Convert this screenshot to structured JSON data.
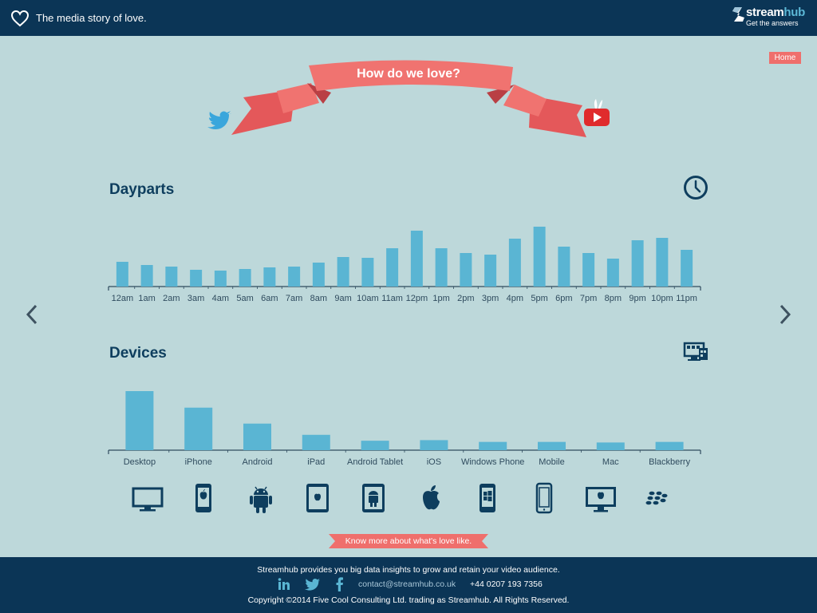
{
  "header": {
    "tagline": "The media story of love.",
    "brand_name_a": "stream",
    "brand_name_b": "hub",
    "brand_sub": "Get the answers"
  },
  "nav": {
    "home_label": "Home"
  },
  "hero": {
    "title": "How do we love?"
  },
  "colors": {
    "bar": "#5ab5d3",
    "navy": "#0b3556",
    "coral": "#ef6f6c",
    "bg": "#bdd8da"
  },
  "sections": {
    "dayparts_title": "Dayparts",
    "devices_title": "Devices"
  },
  "chart_data": [
    {
      "type": "bar",
      "title": "Dayparts",
      "categories": [
        "12am",
        "1am",
        "2am",
        "3am",
        "4am",
        "5am",
        "6am",
        "7am",
        "8am",
        "9am",
        "10am",
        "11am",
        "12pm",
        "1pm",
        "2pm",
        "3pm",
        "4pm",
        "5pm",
        "6pm",
        "7pm",
        "8pm",
        "9pm",
        "10pm",
        "11pm"
      ],
      "values": [
        31,
        27,
        25,
        21,
        20,
        22,
        24,
        25,
        30,
        37,
        36,
        48,
        70,
        48,
        42,
        40,
        60,
        75,
        50,
        42,
        35,
        58,
        61,
        46
      ],
      "ylim": [
        0,
        100
      ]
    },
    {
      "type": "bar",
      "title": "Devices",
      "categories": [
        "Desktop",
        "iPhone",
        "Android",
        "iPad",
        "Android Tablet",
        "iOS",
        "Windows Phone",
        "Mobile",
        "Mac",
        "Blackberry"
      ],
      "values": [
        100,
        72,
        45,
        26,
        16,
        17,
        14,
        14,
        13,
        14
      ],
      "ylim": [
        0,
        100
      ]
    }
  ],
  "device_icons": [
    "desktop-icon",
    "iphone-icon",
    "android-icon",
    "ipad-icon",
    "android-tablet-icon",
    "apple-icon",
    "windows-phone-icon",
    "mobile-icon",
    "mac-icon",
    "blackberry-icon"
  ],
  "cta": {
    "label": "Know more about what's love like."
  },
  "footer": {
    "line1": "Streamhub provides you big data insights to grow and retain your video audience.",
    "contact": "contact@streamhub.co.uk",
    "phone": "+44 0207 193 7356",
    "copyright": "Copyright ©2014 Five Cool Consulting Ltd. trading as Streamhub. All Rights Reserved."
  }
}
